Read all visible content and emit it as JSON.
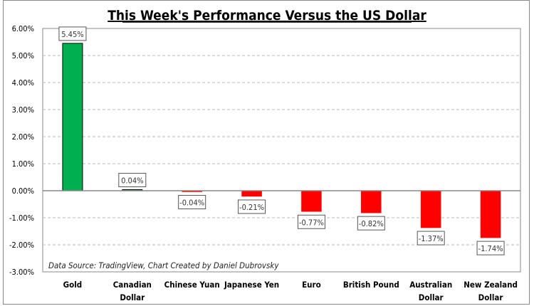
{
  "chart_data": {
    "type": "bar",
    "title": "This Week's Performance Versus the US Dollar",
    "categories": [
      [
        "Gold"
      ],
      [
        "Canadian",
        "Dollar"
      ],
      [
        "Chinese Yuan"
      ],
      [
        "Japanese Yen"
      ],
      [
        "Euro"
      ],
      [
        "British Pound"
      ],
      [
        "Australian",
        "Dollar"
      ],
      [
        "New Zealand",
        "Dollar"
      ]
    ],
    "values": [
      5.45,
      0.04,
      -0.04,
      -0.21,
      -0.77,
      -0.82,
      -1.37,
      -1.74
    ],
    "labels": [
      "5.45%",
      "0.04%",
      "-0.04%",
      "-0.21%",
      "-0.77%",
      "-0.82%",
      "-1.37%",
      "-1.74%"
    ],
    "ylim": [
      -3,
      6
    ],
    "yticks": [
      "6.00%",
      "5.00%",
      "4.00%",
      "3.00%",
      "2.00%",
      "1.00%",
      "0.00%",
      "-1.00%",
      "-2.00%",
      "-3.00%"
    ],
    "ytick_values": [
      6,
      5,
      4,
      3,
      2,
      1,
      0,
      -1,
      -2,
      -3
    ],
    "grid": true,
    "xlabel": "",
    "ylabel": "",
    "annotation": "Data Source: TradingView, Chart Created by Daniel Dubrovsky",
    "colors": {
      "positive": "#00b050",
      "negative": "#ff0000"
    }
  }
}
